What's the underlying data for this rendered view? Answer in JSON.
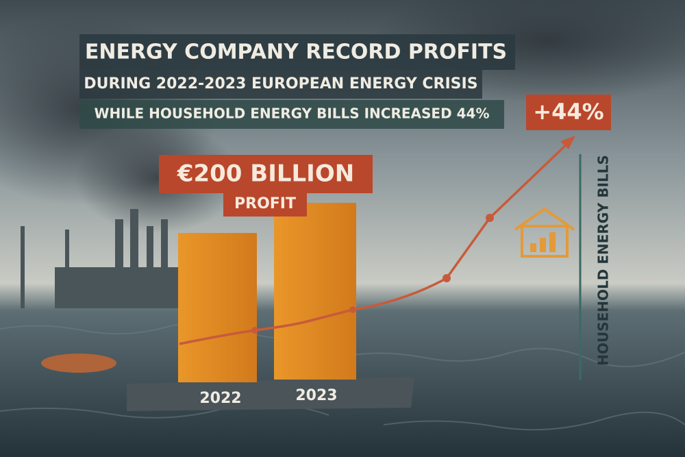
{
  "header": {
    "title": "ENERGY COMPANY RECORD PROFITS",
    "subtitle": "DURING 2022-2023 EUROPEAN ENERGY CRISIS",
    "note": "WHILE HOUSEHOLD ENERGY BILLS INCREASED 44%"
  },
  "profit": {
    "amount": "€200 BILLION",
    "label": "PROFIT"
  },
  "years": [
    "2022",
    "2023"
  ],
  "bills": {
    "change": "+44%",
    "label": "HOUSEHOLD ENERGY BILLS"
  }
}
